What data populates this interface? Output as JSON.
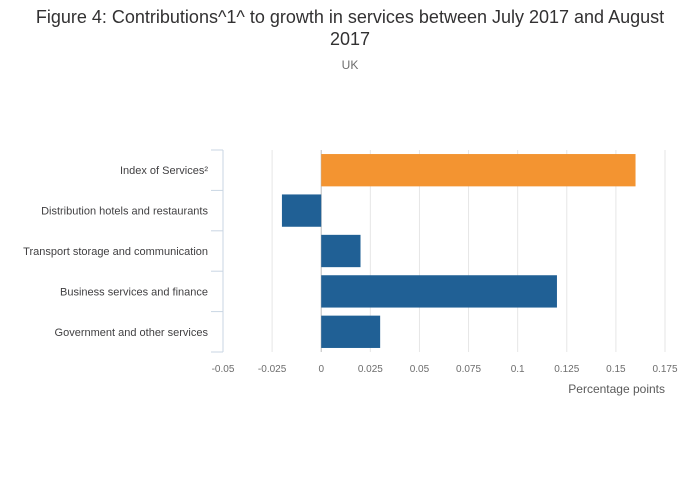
{
  "title": "Figure 4: Contributions^1^ to growth in services between July 2017 and August 2017",
  "subtitle": "UK",
  "chart_data": {
    "type": "bar",
    "orientation": "horizontal",
    "categories": [
      "Index of Services²",
      "Distribution hotels and restaurants",
      "Transport storage and communication",
      "Business services and finance",
      "Government and other services"
    ],
    "values": [
      0.16,
      -0.02,
      0.02,
      0.12,
      0.03
    ],
    "bar_colors": [
      "#f39431",
      "#206095",
      "#206095",
      "#206095",
      "#206095"
    ],
    "xlabel": "Percentage points",
    "xlim": [
      -0.05,
      0.175
    ],
    "xticks": [
      "-0.05",
      "-0.025",
      "0",
      "0.025",
      "0.05",
      "0.075",
      "0.1",
      "0.125",
      "0.15",
      "0.175"
    ],
    "grid": true
  }
}
